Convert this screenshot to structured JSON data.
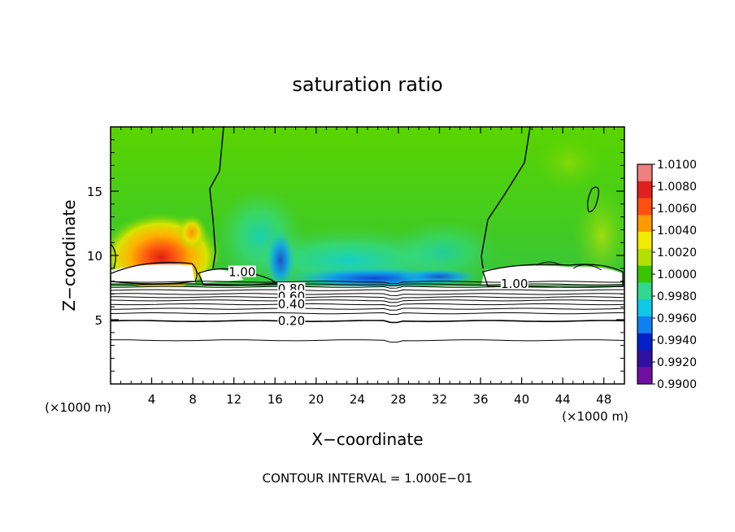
{
  "chart_data": {
    "type": "heatmap",
    "title": "saturation ratio",
    "xlabel": "X−coordinate",
    "ylabel": "Z−coordinate",
    "x_unit_left": "(×1000 m)",
    "x_unit_right": "(×1000 m)",
    "xlim": [
      0,
      50
    ],
    "ylim": [
      0,
      20
    ],
    "x_ticks": [
      4,
      8,
      12,
      16,
      20,
      24,
      28,
      32,
      36,
      40,
      44,
      48
    ],
    "x_tick_labels": [
      "4",
      "8",
      "12",
      "16",
      "20",
      "24",
      "28",
      "32",
      "36",
      "40",
      "44",
      "48"
    ],
    "y_ticks": [
      5,
      10,
      15
    ],
    "y_tick_labels": [
      "5",
      "10",
      "15"
    ],
    "footer": "CONTOUR INTERVAL = 1.000E−01",
    "colorbar": {
      "range": [
        0.99,
        1.01
      ],
      "tick_labels": [
        "1.0100",
        "1.0080",
        "1.0060",
        "1.0040",
        "1.0020",
        "1.0000",
        "0.9980",
        "0.9960",
        "0.9940",
        "0.9920",
        "0.9900"
      ],
      "colors": [
        "#f08080",
        "#e02020",
        "#ff5010",
        "#ff9a00",
        "#f2ea00",
        "#b4e000",
        "#3ac400",
        "#30d890",
        "#10c8e8",
        "#1080f0",
        "#0020c8",
        "#3010a0",
        "#7010a0"
      ]
    },
    "contour_labels": [
      {
        "text": "1.00",
        "x": 12.8,
        "z": 8.7
      },
      {
        "text": "1.00",
        "x": 39.3,
        "z": 7.8
      },
      {
        "text": "0.80",
        "x": 17.6,
        "z": 7.4
      },
      {
        "text": "0.60",
        "x": 17.6,
        "z": 6.8
      },
      {
        "text": "0.40",
        "x": 17.6,
        "z": 6.2
      },
      {
        "text": "0.20",
        "x": 17.6,
        "z": 4.9
      }
    ],
    "contour_lines_z": [
      7.95,
      7.75,
      7.55,
      7.3,
      7.0,
      6.75,
      6.5,
      6.2,
      5.85,
      5.5,
      4.9,
      3.4
    ],
    "saturation_minimum_z_km": 7.8
  }
}
